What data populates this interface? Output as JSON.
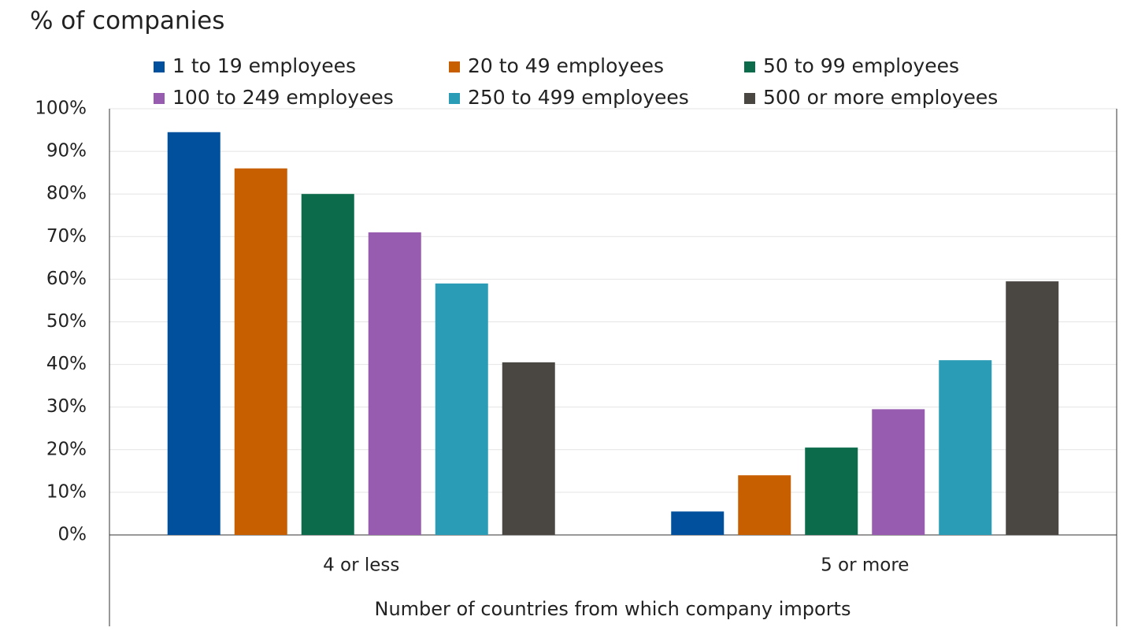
{
  "chart_data": {
    "type": "bar",
    "title": "% of companies",
    "x_axis_label": "Number of countries from which company imports",
    "categories": [
      "4 or less",
      "5 or more"
    ],
    "series": [
      {
        "name": "1 to 19 employees",
        "color": "#00509e",
        "values": [
          94.5,
          5.5
        ]
      },
      {
        "name": "20 to 49 employees",
        "color": "#c75f00",
        "values": [
          86,
          14
        ]
      },
      {
        "name": "50 to 99 employees",
        "color": "#0b6b4a",
        "values": [
          80,
          20.5
        ]
      },
      {
        "name": "100 to 249 employees",
        "color": "#975cb0",
        "values": [
          71,
          29.5
        ]
      },
      {
        "name": "250 to 499 employees",
        "color": "#2b9cb5",
        "values": [
          59,
          41
        ]
      },
      {
        "name": "500 or more employees",
        "color": "#4a4642",
        "values": [
          40.5,
          59.5
        ]
      }
    ],
    "ylim": [
      0,
      100
    ],
    "yticks": [
      {
        "value": 0,
        "label": "0%"
      },
      {
        "value": 10,
        "label": "10%"
      },
      {
        "value": 20,
        "label": "20%"
      },
      {
        "value": 30,
        "label": "30%"
      },
      {
        "value": 40,
        "label": "40%"
      },
      {
        "value": 50,
        "label": "50%"
      },
      {
        "value": 60,
        "label": "60%"
      },
      {
        "value": 70,
        "label": "70%"
      },
      {
        "value": 80,
        "label": "80%"
      },
      {
        "value": 90,
        "label": "90%"
      },
      {
        "value": 100,
        "label": "100%"
      }
    ],
    "grid": true,
    "legend_position": "top"
  }
}
